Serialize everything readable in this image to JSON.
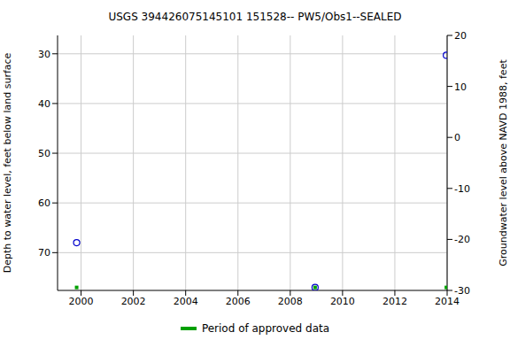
{
  "chart_data": {
    "type": "scatter",
    "title": "USGS 394426075145101 151528-- PW5/Obs1--SEALED",
    "x_label": "",
    "y_label": "Depth to water level, feet below land surface",
    "y2_label": "Groundwater level above NAVD 1988, feet",
    "xlim": [
      1999.1,
      2014
    ],
    "xticks": [
      2000,
      2002,
      2004,
      2006,
      2008,
      2010,
      2012,
      2014
    ],
    "ylim": [
      77.6,
      26.3
    ],
    "yticks": [
      30,
      40,
      50,
      60,
      70
    ],
    "y2lim": [
      -30,
      20
    ],
    "y2ticks": [
      -30,
      -20,
      -10,
      0,
      10,
      20
    ],
    "grid": true,
    "legend": "bottom",
    "series": [
      {
        "color": "#0000cc",
        "marker": "circle_open",
        "x": [
          1999.83,
          2008.95,
          2013.97
        ],
        "values": [
          68.0,
          77.0,
          30.3
        ]
      },
      {
        "name": "Period of approved data",
        "color": "#00a000",
        "marker": "square",
        "x": [
          1999.83,
          2008.95,
          2013.97
        ],
        "values": [
          77.0,
          77.0,
          77.0
        ]
      }
    ]
  }
}
